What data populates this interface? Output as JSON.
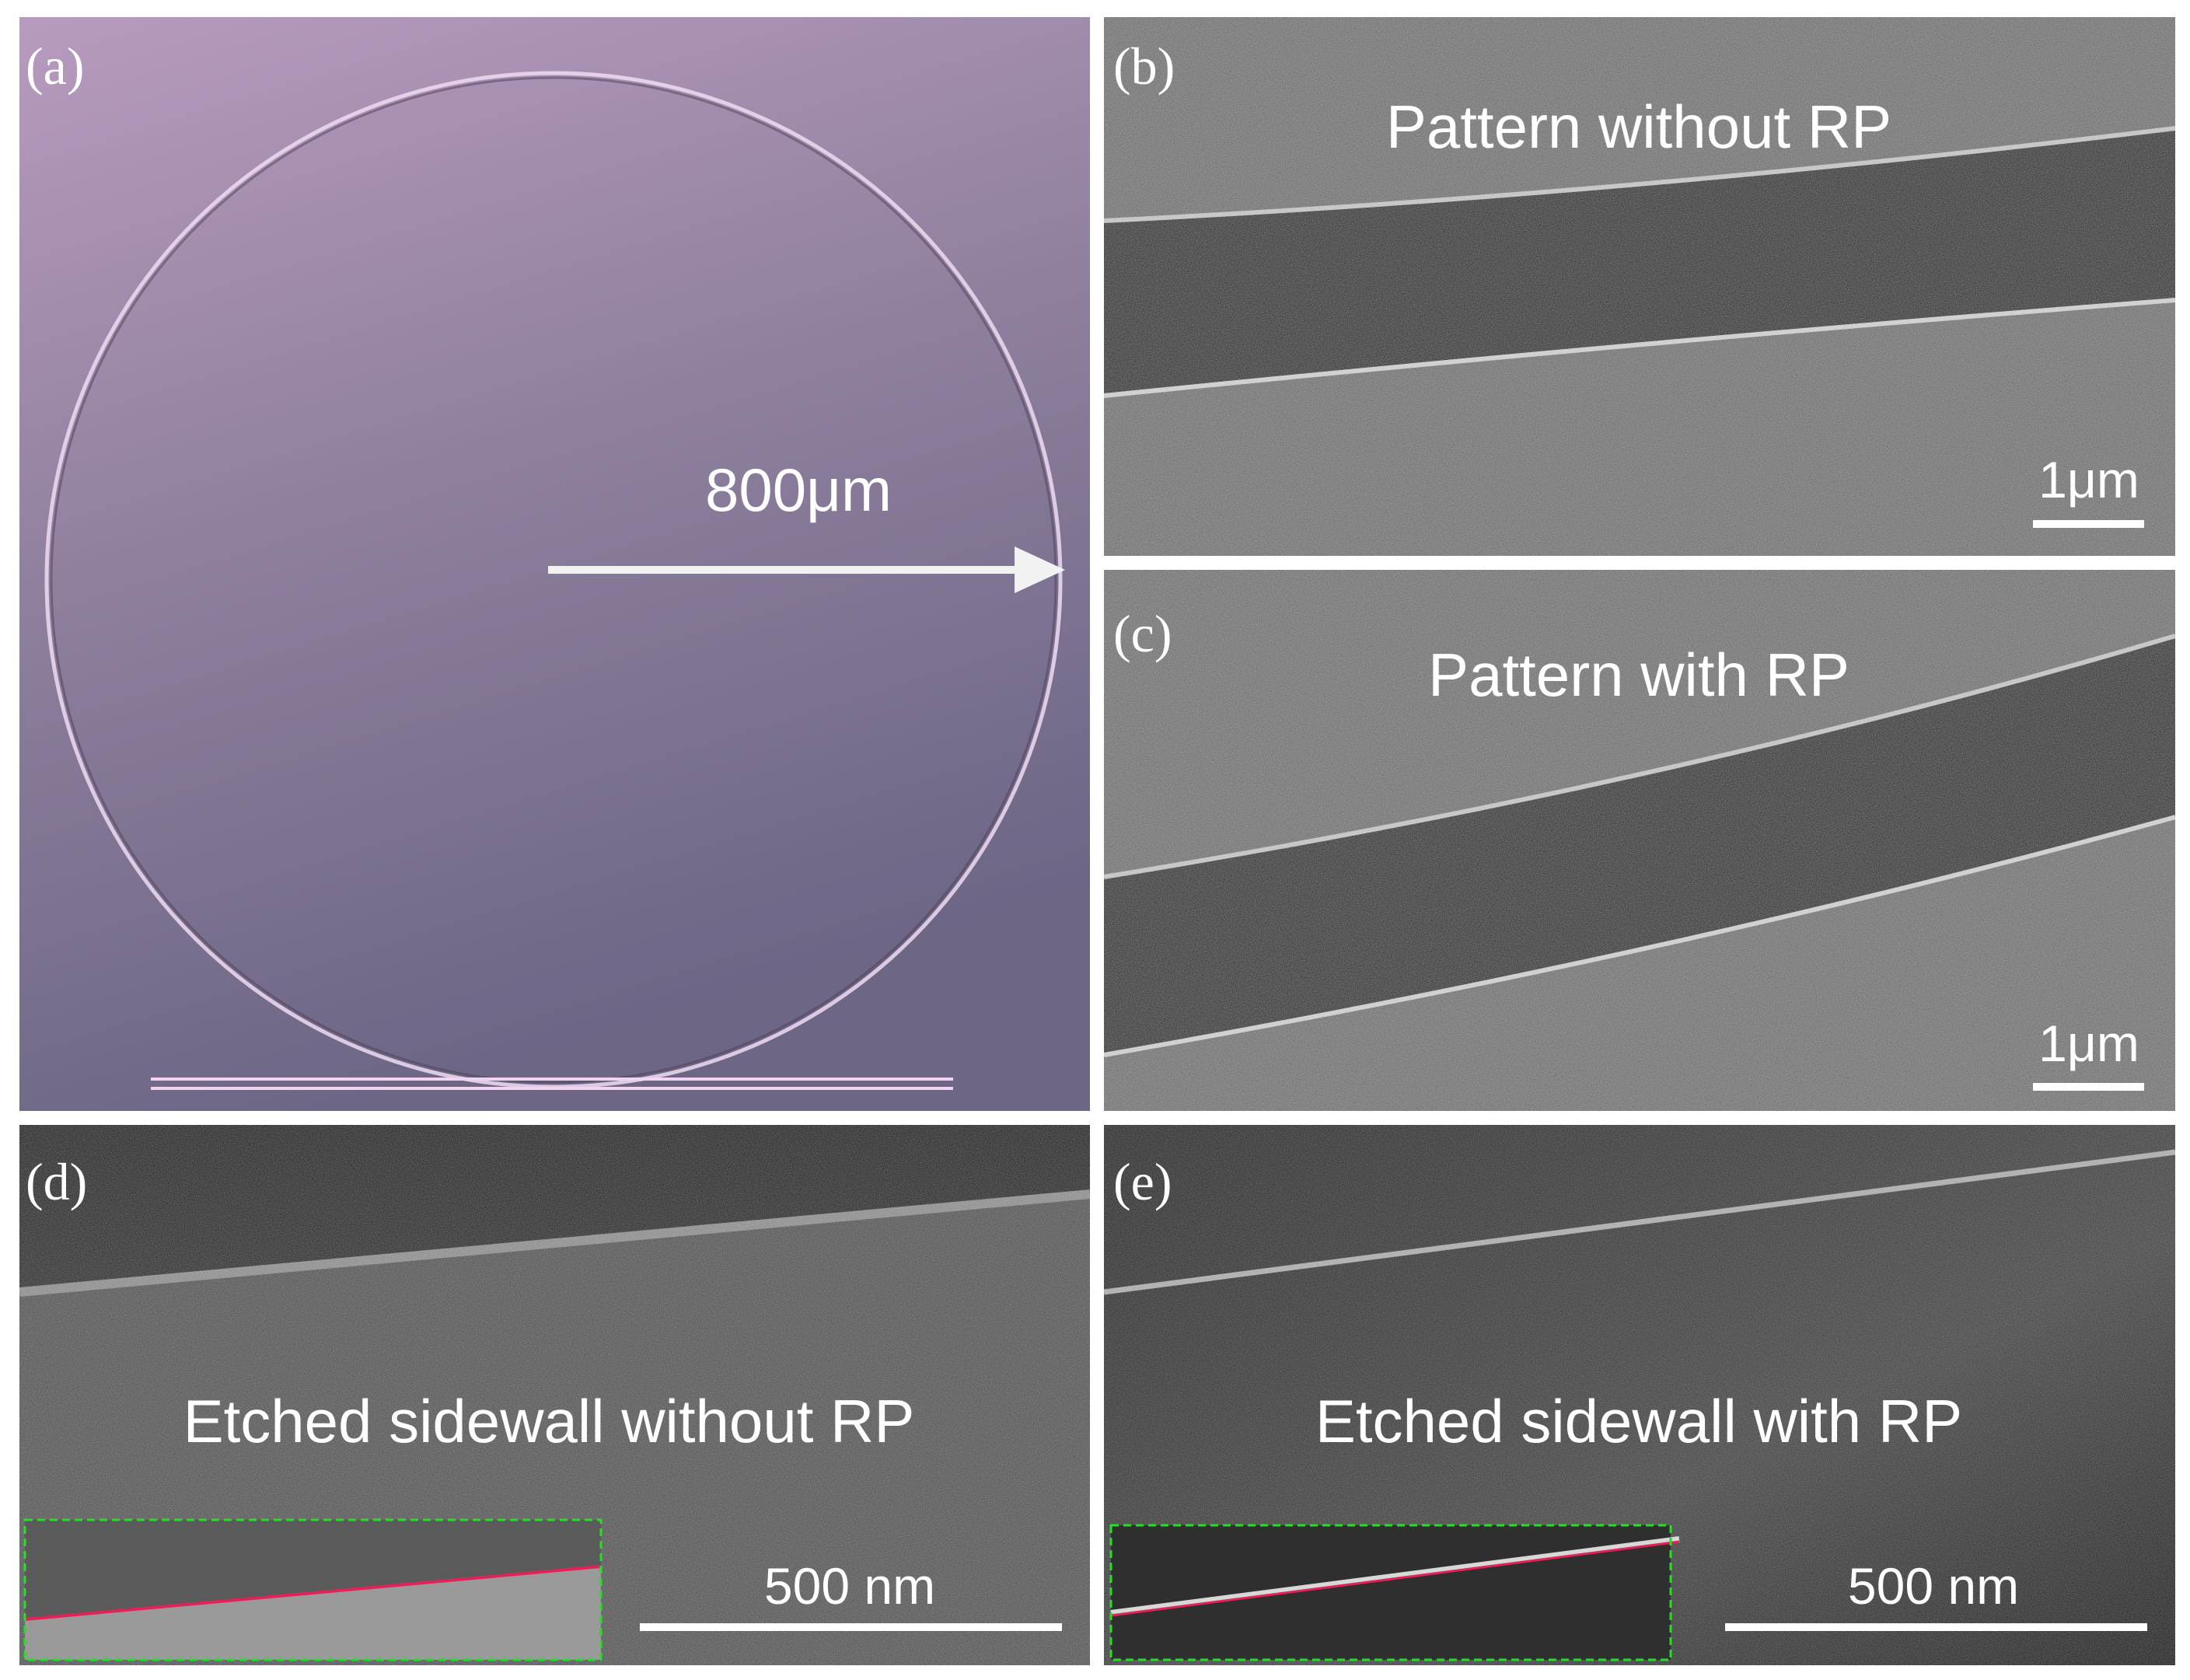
{
  "panels": [
    {
      "label": "(a)",
      "annotation": "800μm"
    },
    {
      "label": "(b)",
      "title": "Pattern without RP",
      "scale_bar": "1μm"
    },
    {
      "label": "(c)",
      "title": "Pattern with RP",
      "scale_bar": "1μm"
    },
    {
      "label": "(d)",
      "title": "Etched sidewall without RP",
      "scale_bar": "500 nm"
    },
    {
      "label": "(e)",
      "title": "Etched sidewall with RP",
      "scale_bar": "500 nm"
    }
  ]
}
